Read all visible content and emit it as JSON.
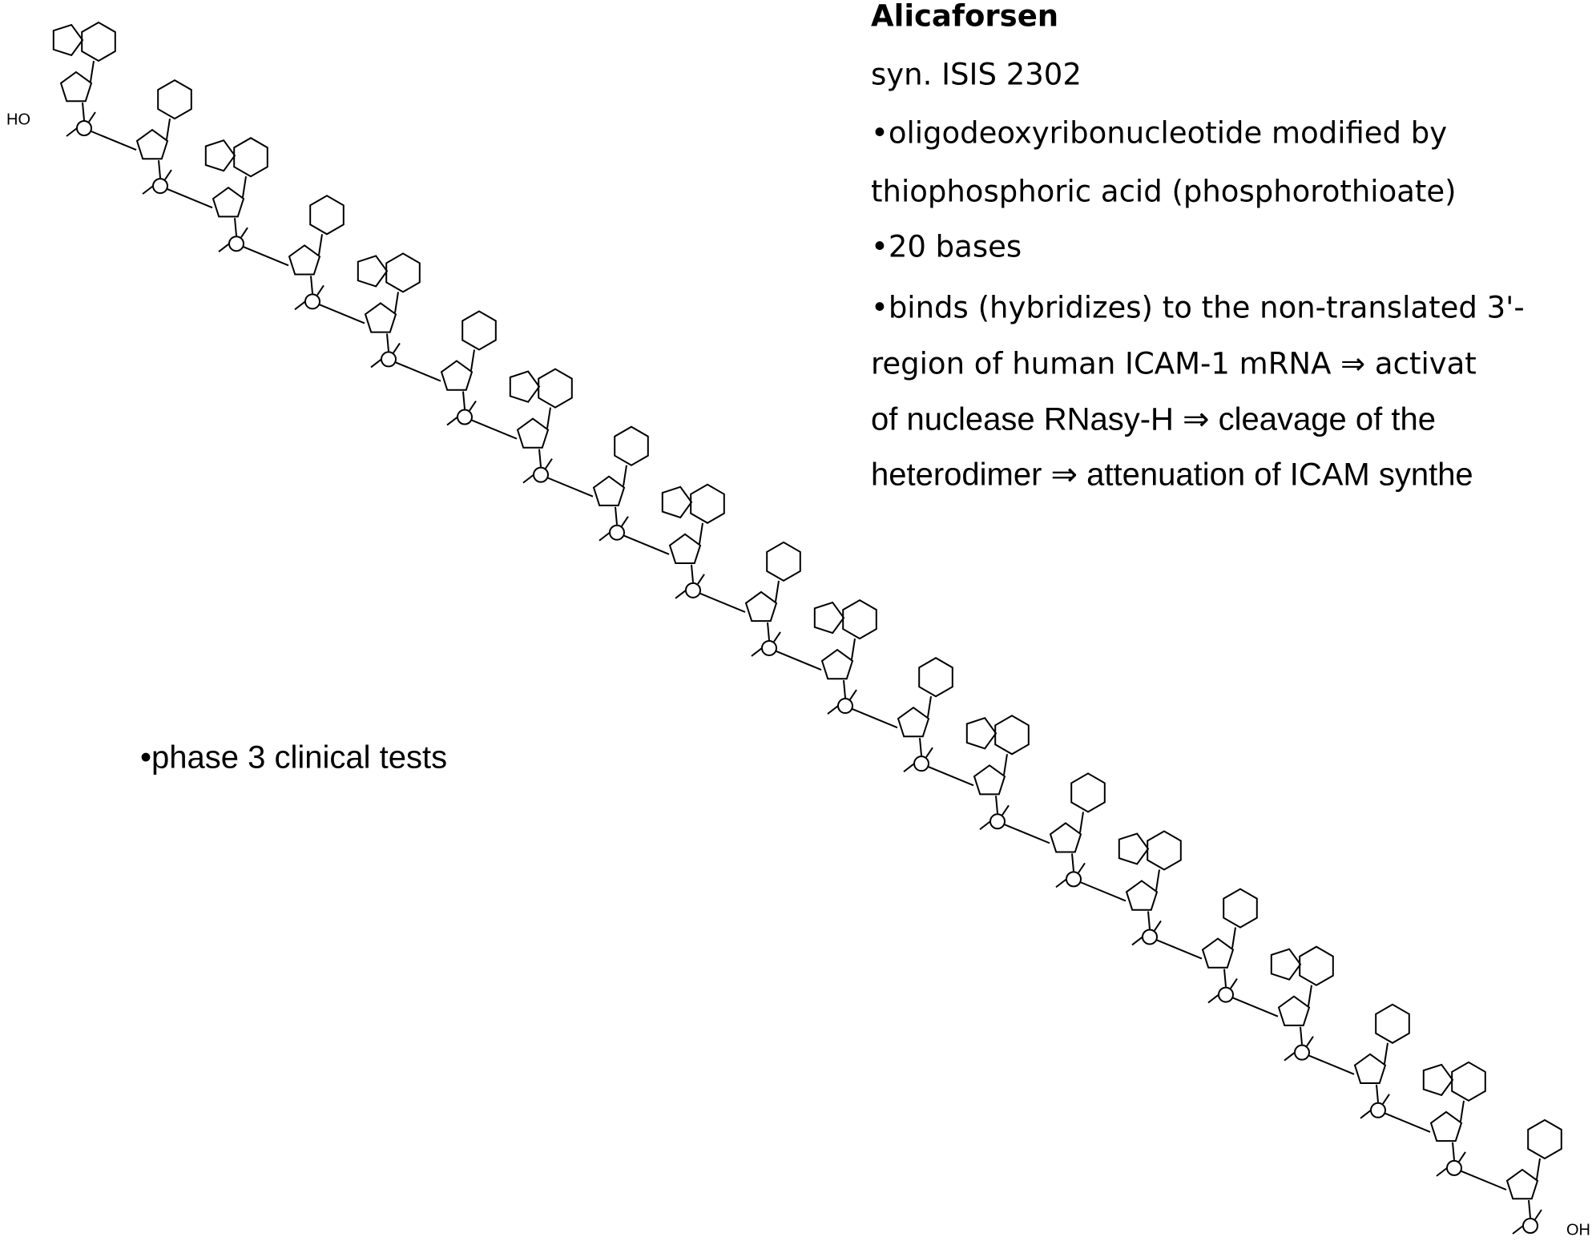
{
  "slide": {
    "title": "Alicaforsen",
    "synonym": "syn. ISIS 2302",
    "bullets": [
      "•oligodeoxyribonucleotide modified by",
      "thiophosphoric acid (phosphorothioate)",
      "•20 bases",
      "•binds (hybridizes) to the non-translated 3'-",
      "region of human ICAM-1 mRNA ⇒  activat",
      "of nuclease RNasy-H ⇒ cleavage of the",
      "heterodimer ⇒ attenuation of ICAM synthe"
    ],
    "note": "•phase 3 clinical tests",
    "structure": {
      "five_prime": "HO",
      "three_prime": "OH"
    }
  }
}
